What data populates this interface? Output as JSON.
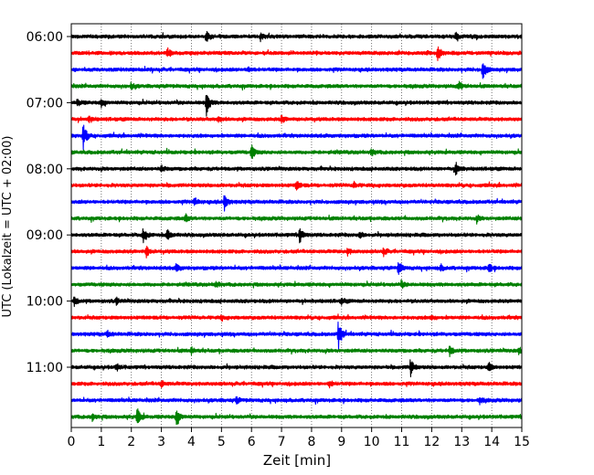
{
  "chart_data": {
    "type": "line",
    "subtype": "helicorder seismogram",
    "title": "",
    "xlabel": "Zeit  [min]",
    "ylabel": "UTC (Lokalzeit = UTC + 02:00)",
    "xlim": [
      0,
      15
    ],
    "x_ticks": [
      "0",
      "1",
      "2",
      "3",
      "4",
      "5",
      "6",
      "7",
      "8",
      "9",
      "10",
      "11",
      "12",
      "13",
      "14",
      "15"
    ],
    "y_tick_labels": [
      "06:00",
      "07:00",
      "08:00",
      "09:00",
      "10:00",
      "11:00"
    ],
    "vertical_grid": true,
    "grid_style": "dotted",
    "trace_colors": [
      "#000000",
      "#ff0000",
      "#0000ff",
      "#008000"
    ],
    "rows": [
      {
        "time": "06:00",
        "color_index": 0,
        "events": [
          [
            4.5,
            0.35
          ],
          [
            6.3,
            0.25
          ],
          [
            12.8,
            0.2
          ]
        ]
      },
      {
        "time": "06:15",
        "color_index": 1,
        "events": [
          [
            3.2,
            0.35
          ],
          [
            12.2,
            0.5
          ]
        ]
      },
      {
        "time": "06:30",
        "color_index": 2,
        "events": [
          [
            13.7,
            0.8
          ],
          [
            5.9,
            0.2
          ]
        ]
      },
      {
        "time": "06:45",
        "color_index": 3,
        "events": [
          [
            2.0,
            0.2
          ],
          [
            12.9,
            0.3
          ]
        ]
      },
      {
        "time": "07:00",
        "color_index": 0,
        "events": [
          [
            4.5,
            0.9
          ],
          [
            1.0,
            0.3
          ],
          [
            0.2,
            0.25
          ]
        ]
      },
      {
        "time": "07:15",
        "color_index": 1,
        "events": [
          [
            7.0,
            0.25
          ],
          [
            0.6,
            0.2
          ],
          [
            4.9,
            0.2
          ]
        ]
      },
      {
        "time": "07:30",
        "color_index": 2,
        "events": [
          [
            0.4,
            0.95
          ]
        ]
      },
      {
        "time": "07:45",
        "color_index": 3,
        "events": [
          [
            6.0,
            0.5
          ],
          [
            10.0,
            0.2
          ]
        ]
      },
      {
        "time": "08:00",
        "color_index": 0,
        "events": [
          [
            12.8,
            0.45
          ],
          [
            3.0,
            0.2
          ]
        ]
      },
      {
        "time": "08:15",
        "color_index": 1,
        "events": [
          [
            7.5,
            0.35
          ],
          [
            9.4,
            0.2
          ]
        ]
      },
      {
        "time": "08:30",
        "color_index": 2,
        "events": [
          [
            5.1,
            0.6
          ],
          [
            4.1,
            0.3
          ]
        ]
      },
      {
        "time": "08:45",
        "color_index": 3,
        "events": [
          [
            3.8,
            0.25
          ],
          [
            13.5,
            0.2
          ]
        ]
      },
      {
        "time": "09:00",
        "color_index": 0,
        "events": [
          [
            2.4,
            0.6
          ],
          [
            3.2,
            0.45
          ],
          [
            7.6,
            0.6
          ],
          [
            9.6,
            0.2
          ]
        ]
      },
      {
        "time": "09:15",
        "color_index": 1,
        "events": [
          [
            2.5,
            0.4
          ],
          [
            10.4,
            0.25
          ],
          [
            9.2,
            0.2
          ]
        ]
      },
      {
        "time": "09:30",
        "color_index": 2,
        "events": [
          [
            10.9,
            0.5
          ],
          [
            13.9,
            0.35
          ],
          [
            3.5,
            0.25
          ],
          [
            12.3,
            0.2
          ]
        ]
      },
      {
        "time": "09:45",
        "color_index": 3,
        "events": [
          [
            4.8,
            0.2
          ],
          [
            11.0,
            0.2
          ]
        ]
      },
      {
        "time": "10:00",
        "color_index": 0,
        "events": [
          [
            0.1,
            0.3
          ],
          [
            1.5,
            0.2
          ],
          [
            9.0,
            0.2
          ]
        ]
      },
      {
        "time": "10:15",
        "color_index": 1,
        "events": [
          [
            5.0,
            0.15
          ],
          [
            12.0,
            0.15
          ]
        ]
      },
      {
        "time": "10:30",
        "color_index": 2,
        "events": [
          [
            8.9,
            1.05
          ],
          [
            1.2,
            0.2
          ]
        ]
      },
      {
        "time": "10:45",
        "color_index": 3,
        "events": [
          [
            12.6,
            0.35
          ],
          [
            4.0,
            0.2
          ],
          [
            14.9,
            0.2
          ]
        ]
      },
      {
        "time": "11:00",
        "color_index": 0,
        "events": [
          [
            11.3,
            0.6
          ],
          [
            1.5,
            0.25
          ],
          [
            13.9,
            0.3
          ]
        ]
      },
      {
        "time": "11:15",
        "color_index": 1,
        "events": [
          [
            8.6,
            0.2
          ],
          [
            3.0,
            0.2
          ]
        ]
      },
      {
        "time": "11:30",
        "color_index": 2,
        "events": [
          [
            5.5,
            0.2
          ],
          [
            13.6,
            0.2
          ]
        ]
      },
      {
        "time": "11:45",
        "color_index": 3,
        "events": [
          [
            2.2,
            0.7
          ],
          [
            3.5,
            0.7
          ],
          [
            0.7,
            0.25
          ]
        ]
      }
    ]
  }
}
